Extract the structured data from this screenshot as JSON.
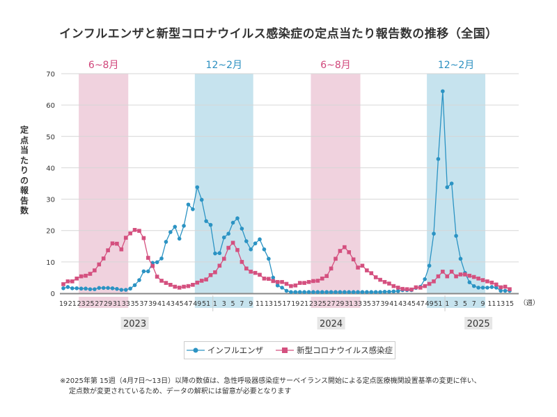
{
  "chart_data": {
    "type": "line",
    "title": "インフルエンザと新型コロナウイルス感染症の定点当たり報告数の推移（全国）",
    "ylabel": "定点当たりの報告数",
    "xunit": "（週）",
    "ylim": [
      0,
      70
    ],
    "yticks": [
      0,
      10,
      20,
      30,
      40,
      50,
      60,
      70
    ],
    "grid": true,
    "legend_position": "bottom",
    "years": [
      {
        "label": "2023",
        "weeks_from": 19,
        "weeks_to": 52
      },
      {
        "label": "2024",
        "weeks_from": 1,
        "weeks_to": 52
      },
      {
        "label": "2025",
        "weeks_from": 1,
        "weeks_to": 15
      }
    ],
    "bands": [
      {
        "label": "6~8月",
        "year": "2023",
        "from_week": 23,
        "to_week": 33,
        "kind": "summer"
      },
      {
        "label": "12~2月",
        "year": "2023-2024",
        "from_week": 49,
        "to_week": 9,
        "kind": "winter"
      },
      {
        "label": "6~8月",
        "year": "2024",
        "from_week": 23,
        "to_week": 33,
        "kind": "summer"
      },
      {
        "label": "12~2月",
        "year": "2024-2025",
        "from_week": 49,
        "to_week": 9,
        "kind": "winter"
      }
    ],
    "series": [
      {
        "name": "インフルエンザ",
        "color": "#2b93c3",
        "marker": "circle",
        "values": [
          1.6,
          2.0,
          1.6,
          1.6,
          1.5,
          1.5,
          1.3,
          1.3,
          1.7,
          1.7,
          1.7,
          1.6,
          1.4,
          1.1,
          1.1,
          1.5,
          2.6,
          4.2,
          7.0,
          7.0,
          9.7,
          9.9,
          11.1,
          16.4,
          19.5,
          21.2,
          17.4,
          21.5,
          28.3,
          26.8,
          33.8,
          29.8,
          23.0,
          21.8,
          12.7,
          12.8,
          17.8,
          19.0,
          22.5,
          23.9,
          20.6,
          16.6,
          14.0,
          15.9,
          17.2,
          14.0,
          11.0,
          5.0,
          2.5,
          1.8,
          0.8,
          0.4,
          0.4,
          0.4,
          0.4,
          0.4,
          0.4,
          0.4,
          0.4,
          0.4,
          0.4,
          0.4,
          0.4,
          0.4,
          0.4,
          0.4,
          0.4,
          0.4,
          0.4,
          0.4,
          0.4,
          0.4,
          0.5,
          0.5,
          0.6,
          0.7,
          1.0,
          1.0,
          1.0,
          1.7,
          2.1,
          4.5,
          8.8,
          19.0,
          42.8,
          64.4,
          33.8,
          35.0,
          18.3,
          11.0,
          6.5,
          3.5,
          2.3,
          1.8,
          1.8,
          1.8,
          2.0,
          1.8,
          0.8,
          0.8,
          0.8
        ]
      },
      {
        "name": "新型コロナウイルス感染症",
        "color": "#d4507f",
        "marker": "square",
        "values": [
          2.9,
          3.8,
          3.8,
          4.7,
          5.4,
          5.6,
          6.2,
          7.3,
          9.2,
          11.1,
          13.7,
          15.9,
          15.8,
          14.0,
          17.7,
          19.1,
          20.2,
          19.9,
          17.6,
          11.3,
          8.7,
          5.3,
          4.0,
          3.3,
          2.7,
          2.1,
          1.8,
          2.1,
          2.3,
          2.7,
          3.4,
          4.0,
          4.4,
          5.8,
          6.7,
          8.8,
          11.0,
          14.5,
          16.1,
          13.8,
          10.0,
          7.9,
          6.9,
          6.5,
          5.9,
          4.7,
          4.6,
          3.9,
          3.6,
          3.6,
          3.0,
          2.3,
          2.5,
          3.3,
          3.3,
          3.6,
          3.9,
          4.0,
          4.7,
          5.5,
          7.9,
          11.0,
          13.5,
          14.7,
          13.1,
          10.8,
          8.2,
          8.8,
          7.3,
          6.4,
          5.1,
          4.3,
          3.6,
          3.1,
          2.3,
          1.8,
          1.4,
          1.3,
          1.2,
          1.9,
          1.8,
          2.3,
          3.0,
          3.8,
          5.4,
          6.9,
          5.4,
          6.9,
          5.4,
          6.0,
          6.0,
          5.6,
          5.2,
          4.7,
          4.2,
          3.8,
          3.4,
          2.8,
          1.9,
          2.1,
          1.3
        ]
      }
    ],
    "band_colors": {
      "summer": "#f0d2de",
      "winter": "#c6e3ee",
      "summer_text": "#d0457a",
      "winter_text": "#2a8fc0"
    }
  },
  "footnote": {
    "line1": "※2025年第 15週（4月7日〜13日）以降の数値は、急性呼吸器感染症サーベイランス開始による定点医療機関設置基準の変更に伴い、",
    "line2": "定点数が変更されているため、データの解釈には留意が必要となります"
  }
}
